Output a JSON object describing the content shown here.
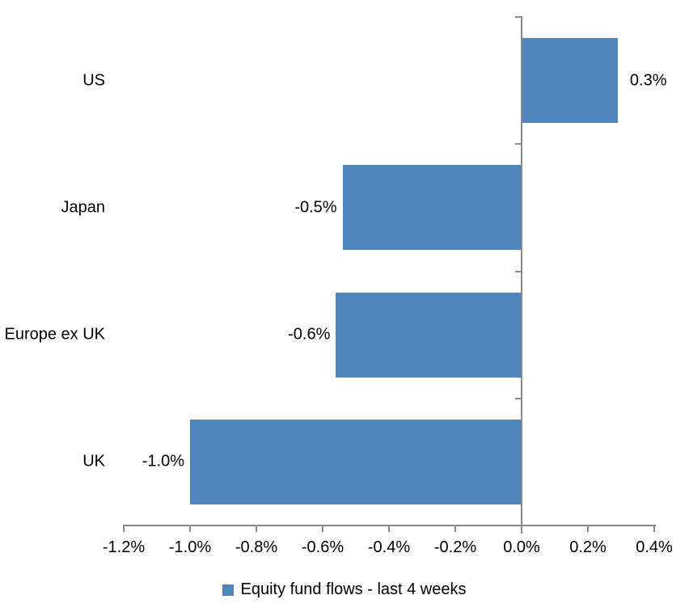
{
  "chart_data": {
    "type": "bar",
    "orientation": "horizontal",
    "title": "",
    "categories": [
      "US",
      "Japan",
      "Europe ex UK",
      "UK"
    ],
    "values": [
      0.3,
      -0.5,
      -0.6,
      -1.0
    ],
    "values_precise_pct": [
      0.29,
      -0.54,
      -0.56,
      -1.0
    ],
    "data_labels": [
      "0.3%",
      "-0.5%",
      "-0.6%",
      "-1.0%"
    ],
    "xlabel": "",
    "ylabel": "",
    "xlim": [
      -1.2,
      0.4
    ],
    "x_tick_values": [
      -1.2,
      -1.0,
      -0.8,
      -0.6,
      -0.4,
      -0.2,
      0.0,
      0.2,
      0.4
    ],
    "x_tick_labels": [
      "-1.2%",
      "-1.0%",
      "-0.8%",
      "-0.6%",
      "-0.4%",
      "-0.2%",
      "0.0%",
      "0.2%",
      "0.4%"
    ],
    "grid": false,
    "legend_position": "bottom",
    "legend": [
      {
        "label": "Equity fund flows - last 4 weeks",
        "color": "#4e86bc"
      }
    ],
    "colors": {
      "bar": "#4e86bc",
      "axis": "#8a8a8a",
      "text": "#000000",
      "background": "#ffffff"
    }
  }
}
